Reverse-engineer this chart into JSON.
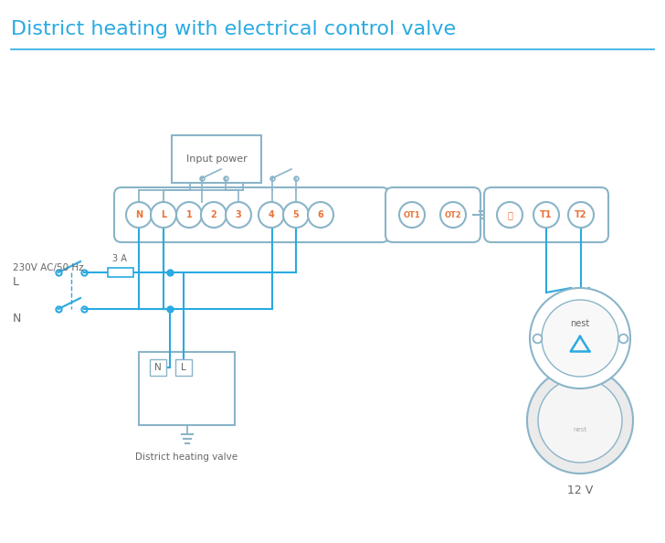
{
  "title": "District heating with electrical control valve",
  "title_color": "#29aae1",
  "title_fontsize": 16,
  "bg_color": "#ffffff",
  "line_color": "#29aae1",
  "component_color": "#8ab4c8",
  "text_color": "#666666",
  "orange_text": "#e8733a",
  "terminal_labels_main": [
    "N",
    "L",
    "1",
    "2",
    "3",
    "4",
    "5",
    "6"
  ],
  "terminal_labels_ot": [
    "OT1",
    "OT2"
  ],
  "terminal_labels_t": [
    "⏚",
    "T1",
    "T2"
  ],
  "input_power_label": "Input power",
  "district_heating_label": "District heating valve",
  "voltage_label": "230V AC/50 Hz",
  "fuse_label": "3 A",
  "l_label": "L",
  "n_label": "N",
  "v12_label": "12 V",
  "nest_label": "nest"
}
